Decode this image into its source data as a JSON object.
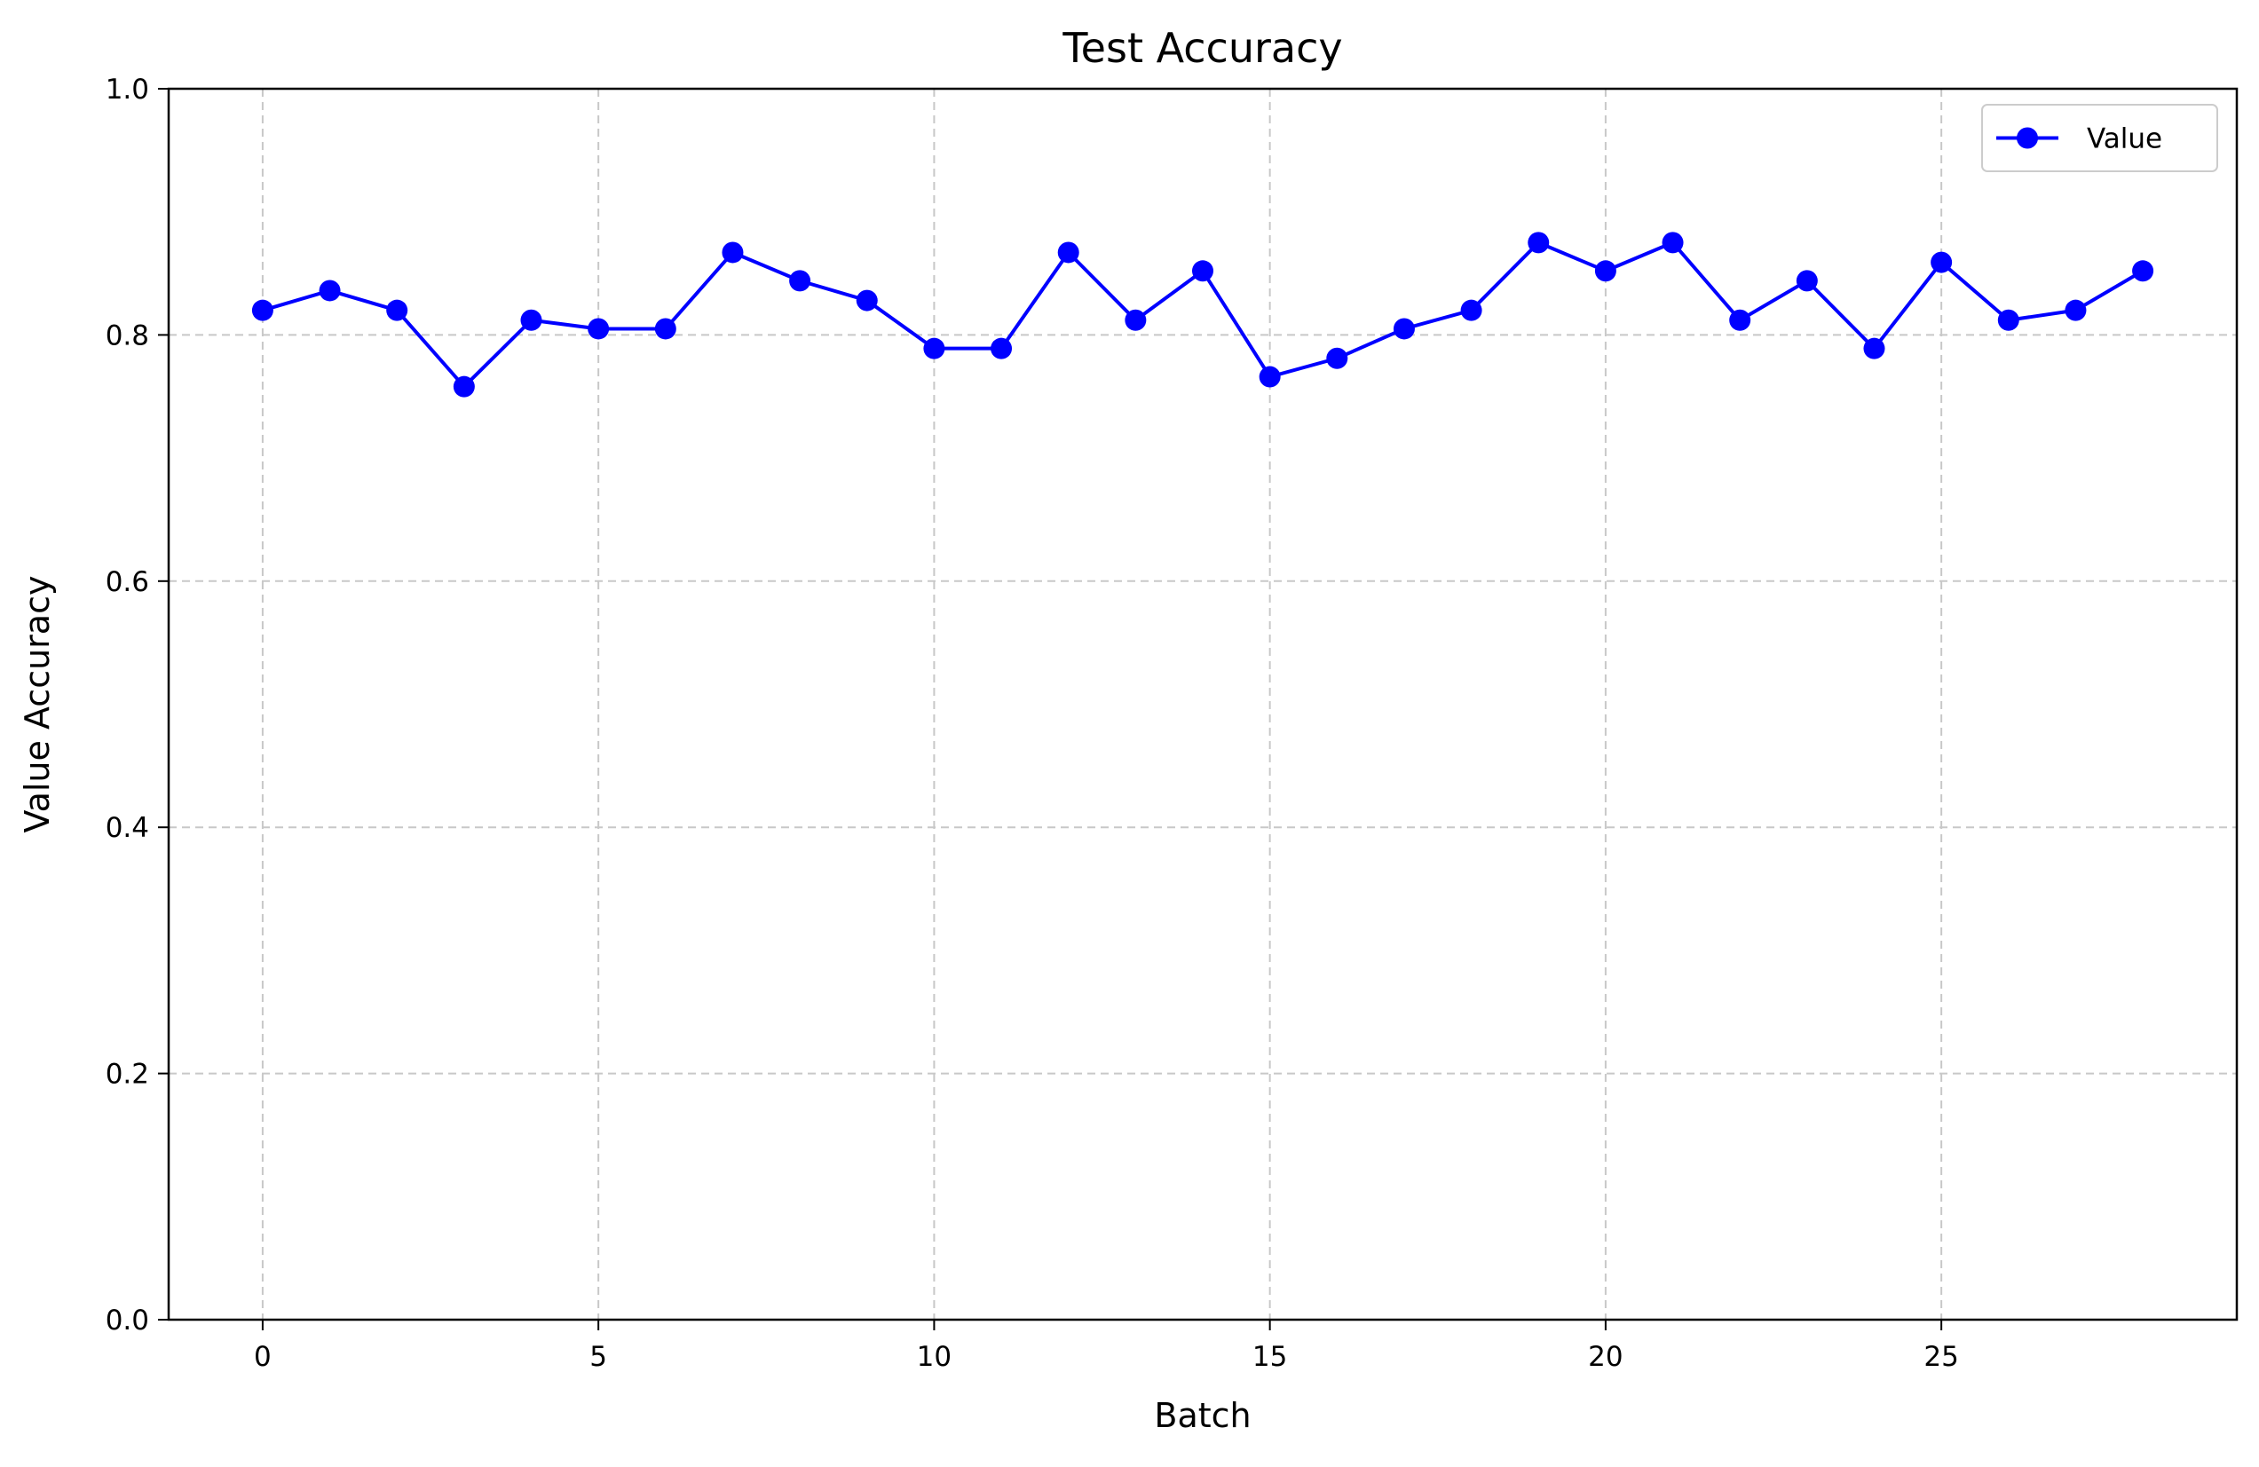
{
  "chart_data": {
    "type": "line",
    "title": "Test Accuracy",
    "xlabel": "Batch",
    "ylabel": "Value Accuracy",
    "xlim": [
      -1.4,
      29.4
    ],
    "ylim": [
      0.0,
      1.0
    ],
    "x_ticks": [
      0,
      5,
      10,
      15,
      20,
      25
    ],
    "x_tick_labels": [
      "0",
      "5",
      "10",
      "15",
      "20",
      "25"
    ],
    "y_ticks": [
      0.0,
      0.2,
      0.4,
      0.6,
      0.8,
      1.0
    ],
    "y_tick_labels": [
      "0.0",
      "0.2",
      "0.4",
      "0.6",
      "0.8",
      "1.0"
    ],
    "grid": true,
    "legend_position": "top-right",
    "x": [
      0,
      1,
      2,
      3,
      4,
      5,
      6,
      7,
      8,
      9,
      10,
      11,
      12,
      13,
      14,
      15,
      16,
      17,
      18,
      19,
      20,
      21,
      22,
      23,
      24,
      25,
      26,
      27,
      28
    ],
    "series": [
      {
        "name": "Value",
        "color": "#0000ff",
        "marker": "circle",
        "values": [
          0.82,
          0.836,
          0.82,
          0.758,
          0.812,
          0.805,
          0.805,
          0.867,
          0.844,
          0.828,
          0.789,
          0.789,
          0.867,
          0.812,
          0.852,
          0.766,
          0.781,
          0.805,
          0.82,
          0.875,
          0.852,
          0.875,
          0.812,
          0.844,
          0.789,
          0.859,
          0.812,
          0.82,
          0.852
        ]
      }
    ]
  }
}
